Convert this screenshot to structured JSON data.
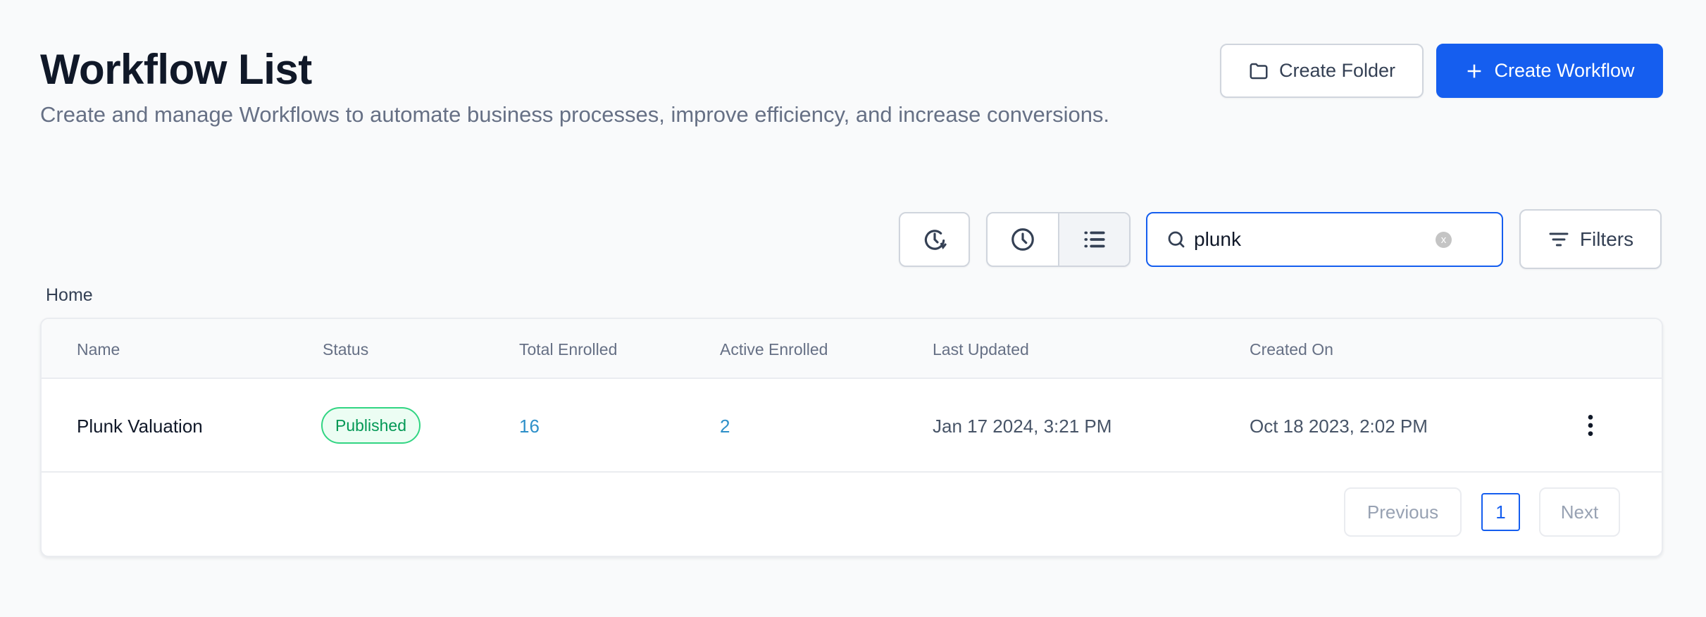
{
  "header": {
    "title": "Workflow List",
    "subtitle": "Create and manage Workflows to automate business processes, improve efficiency, and increase conversions.",
    "create_folder_label": "Create Folder",
    "create_workflow_label": "Create Workflow"
  },
  "toolbar": {
    "search_value": "plunk",
    "filters_label": "Filters",
    "view_mode": "list"
  },
  "breadcrumb": "Home",
  "table": {
    "columns": [
      "Name",
      "Status",
      "Total Enrolled",
      "Active Enrolled",
      "Last Updated",
      "Created On"
    ],
    "rows": [
      {
        "name": "Plunk Valuation",
        "status": "Published",
        "total_enrolled": "16",
        "active_enrolled": "2",
        "last_updated": "Jan 17 2024, 3:21 PM",
        "created_on": "Oct 18 2023, 2:02 PM"
      }
    ]
  },
  "pagination": {
    "previous_label": "Previous",
    "current_page": "1",
    "next_label": "Next"
  },
  "colors": {
    "primary": "#155eef",
    "published": "#039855",
    "link_number": "#2e90c9"
  }
}
